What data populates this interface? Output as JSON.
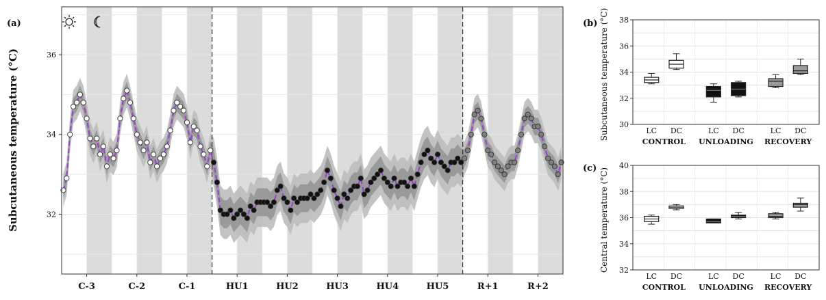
{
  "chart_data": [
    {
      "panel": "(a)",
      "type": "line",
      "ylabel": "Subcutaneous temperature (°C)",
      "ylim": [
        30.5,
        37.2
      ],
      "yticks": [
        32,
        34,
        36
      ],
      "xlabels": [
        "C-3",
        "C-2",
        "C-1",
        "HU1",
        "HU2",
        "HU3",
        "HU4",
        "HU5",
        "R+1",
        "R+2"
      ],
      "icons": [
        "sun-icon",
        "moon-icon"
      ],
      "phase_dividers_after_day": [
        3,
        8
      ],
      "series": [
        {
          "name": "mean",
          "phases": [
            "control",
            "control",
            "control",
            "unloading",
            "unloading",
            "unloading",
            "unloading",
            "unloading",
            "recovery",
            "recovery"
          ],
          "values": [
            [
              32.6,
              32.9,
              34.0,
              34.7,
              34.8,
              35.0,
              34.8,
              34.4,
              33.9,
              33.7,
              33.9,
              33.5,
              33.7,
              33.2,
              33.5
            ],
            [
              33.4,
              33.6,
              34.4,
              34.9,
              35.1,
              34.8,
              34.4,
              34.0,
              33.8,
              33.6,
              33.8,
              33.3,
              33.5,
              33.2,
              33.4
            ],
            [
              33.5,
              33.7,
              34.1,
              34.6,
              34.8,
              34.7,
              34.6,
              34.3,
              33.8,
              34.2,
              34.1,
              33.7,
              33.5,
              33.2,
              33.6
            ],
            [
              33.3,
              32.8,
              32.1,
              32.0,
              32.0,
              32.1,
              31.9,
              32.0,
              32.1,
              32.0,
              31.9,
              32.2,
              32.1,
              32.3,
              32.3
            ],
            [
              32.3,
              32.3,
              32.2,
              32.3,
              32.6,
              32.7,
              32.4,
              32.3,
              32.1,
              32.4,
              32.3,
              32.4,
              32.4,
              32.4,
              32.5
            ],
            [
              32.4,
              32.5,
              32.6,
              32.8,
              33.1,
              32.9,
              32.6,
              32.4,
              32.2,
              32.5,
              32.4,
              32.6,
              32.7,
              32.7,
              32.9
            ],
            [
              32.5,
              32.6,
              32.8,
              32.9,
              33.0,
              33.1,
              32.9,
              32.8,
              32.7,
              32.9,
              32.7,
              32.8,
              32.8,
              32.7,
              32.9
            ],
            [
              32.7,
              33.0,
              33.3,
              33.5,
              33.6,
              33.4,
              33.3,
              33.5,
              33.3,
              33.2,
              33.1,
              33.3,
              33.3,
              33.4,
              33.3
            ],
            [
              33.4,
              33.6,
              34.0,
              34.5,
              34.6,
              34.4,
              34.0,
              33.6,
              33.5,
              33.3,
              33.2,
              33.1,
              33.0,
              33.2,
              33.3
            ],
            [
              33.3,
              33.6,
              34.0,
              34.4,
              34.5,
              34.4,
              34.2,
              34.2,
              34.0,
              33.7,
              33.4,
              33.3,
              33.2,
              33.0,
              33.3
            ]
          ]
        }
      ]
    },
    {
      "panel": "(b)",
      "type": "box",
      "ylabel": "Subcutaneous temperature (°C)",
      "ylim": [
        30,
        38
      ],
      "yticks": [
        30,
        32,
        34,
        36,
        38
      ],
      "groups": [
        "CONTROL",
        "UNLOADING",
        "RECOVERY"
      ],
      "subgroups": [
        "LC",
        "DC"
      ],
      "boxes": [
        {
          "group": "CONTROL",
          "sub": "LC",
          "min": 33.1,
          "q1": 33.2,
          "median": 33.4,
          "q3": 33.6,
          "max": 33.9
        },
        {
          "group": "CONTROL",
          "sub": "DC",
          "min": 34.2,
          "q1": 34.3,
          "median": 34.6,
          "q3": 34.9,
          "max": 35.4
        },
        {
          "group": "UNLOADING",
          "sub": "LC",
          "min": 31.7,
          "q1": 32.1,
          "median": 32.6,
          "q3": 32.9,
          "max": 33.1
        },
        {
          "group": "UNLOADING",
          "sub": "DC",
          "min": 32.1,
          "q1": 32.2,
          "median": 32.7,
          "q3": 33.2,
          "max": 33.3
        },
        {
          "group": "RECOVERY",
          "sub": "LC",
          "min": 32.8,
          "q1": 32.9,
          "median": 33.3,
          "q3": 33.5,
          "max": 33.8
        },
        {
          "group": "RECOVERY",
          "sub": "DC",
          "min": 33.8,
          "q1": 33.9,
          "median": 34.1,
          "q3": 34.5,
          "max": 35.0
        }
      ]
    },
    {
      "panel": "(c)",
      "type": "box",
      "ylabel": "Central temperature (°C)",
      "ylim": [
        32,
        40
      ],
      "yticks": [
        32,
        34,
        36,
        38,
        40
      ],
      "groups": [
        "CONTROL",
        "UNLOADING",
        "RECOVERY"
      ],
      "subgroups": [
        "LC",
        "DC"
      ],
      "boxes": [
        {
          "group": "CONTROL",
          "sub": "LC",
          "min": 35.5,
          "q1": 35.7,
          "median": 35.9,
          "q3": 36.1,
          "max": 36.2
        },
        {
          "group": "CONTROL",
          "sub": "DC",
          "min": 36.6,
          "q1": 36.7,
          "median": 36.8,
          "q3": 36.9,
          "max": 37.0
        },
        {
          "group": "UNLOADING",
          "sub": "LC",
          "min": 35.6,
          "q1": 35.6,
          "median": 35.7,
          "q3": 35.9,
          "max": 35.9
        },
        {
          "group": "UNLOADING",
          "sub": "DC",
          "min": 35.9,
          "q1": 36.0,
          "median": 36.1,
          "q3": 36.2,
          "max": 36.4
        },
        {
          "group": "RECOVERY",
          "sub": "LC",
          "min": 35.9,
          "q1": 36.0,
          "median": 36.1,
          "q3": 36.3,
          "max": 36.4
        },
        {
          "group": "RECOVERY",
          "sub": "DC",
          "min": 36.5,
          "q1": 36.8,
          "median": 37.0,
          "q3": 37.1,
          "max": 37.5
        }
      ]
    }
  ],
  "colors": {
    "mean_line": "#9b3fd6",
    "night_band": "#dcdcdc",
    "band_inner": "#909090",
    "band_outer": "#bdbdbd",
    "dot_control": "#ffffff",
    "dot_unloading": "#111111",
    "dot_recovery": "#808080",
    "box_control": "#ffffff",
    "box_unloading": "#111111",
    "box_recovery": "#9a9a9a"
  }
}
